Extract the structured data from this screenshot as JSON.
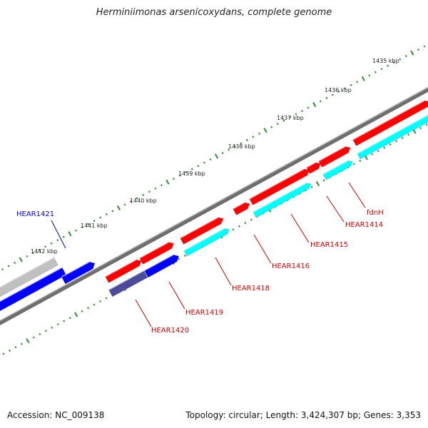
{
  "title": "Herminiimonas arsenicoxydans, complete genome",
  "footer": {
    "accession": "Accession: NC_009138",
    "topology": "Topology: circular; Length: 3,424,307 bp; Genes: 3,353"
  },
  "colors": {
    "forward_gene": "#ff0000",
    "forward_cds": "#00ffff",
    "reverse_gene": "#0000ff",
    "reverse_pseudo": "#4b4b9b",
    "reverse_other": "#c0c0c0",
    "backbone": "#808080",
    "ruler": "#2e8b2e",
    "forward_label": "#cc0000",
    "reverse_label": "#0000cc"
  },
  "ruler": {
    "labels": [
      "1435 kbp",
      "1436 kbp",
      "1437 kbp",
      "1438 kbp",
      "1439 kbp",
      "1440 kbp",
      "1441 kbp",
      "1442 kbp"
    ]
  },
  "gene_labels": {
    "forward": [
      "fdnH",
      "HEAR1414",
      "HEAR1415",
      "HEAR1416",
      "HEAR1418",
      "HEAR1419",
      "HEAR1420"
    ],
    "reverse": [
      "HEAR1421"
    ]
  }
}
